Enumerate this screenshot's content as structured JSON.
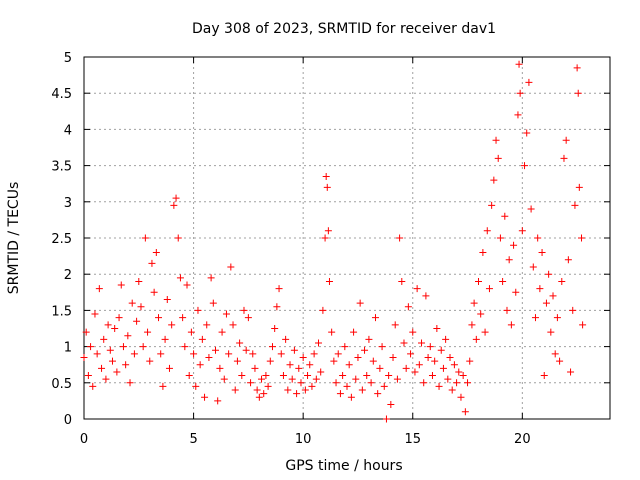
{
  "chart_data": {
    "type": "scatter",
    "title": "Day 308 of 2023, SRMTID for receiver dav1",
    "xlabel": "GPS time / hours",
    "ylabel": "SRMTID / TECUs",
    "xlim": [
      0,
      24
    ],
    "ylim": [
      0,
      5
    ],
    "x_ticks": [
      "0",
      "5",
      "10",
      "15",
      "20"
    ],
    "y_ticks": [
      "0",
      "0.5",
      "1",
      "1.5",
      "2",
      "2.5",
      "3",
      "3.5",
      "4",
      "4.5",
      "5"
    ],
    "grid": true,
    "marker": "+",
    "color": "#ff0000",
    "series": [
      {
        "name": "dav1",
        "points": [
          [
            0.0,
            0.85
          ],
          [
            0.1,
            1.2
          ],
          [
            0.2,
            0.6
          ],
          [
            0.3,
            1.0
          ],
          [
            0.4,
            0.45
          ],
          [
            0.5,
            1.45
          ],
          [
            0.6,
            0.9
          ],
          [
            0.7,
            1.8
          ],
          [
            0.8,
            0.7
          ],
          [
            0.9,
            1.1
          ],
          [
            1.0,
            0.55
          ],
          [
            1.1,
            1.3
          ],
          [
            1.2,
            0.95
          ],
          [
            1.3,
            0.8
          ],
          [
            1.4,
            1.25
          ],
          [
            1.5,
            0.65
          ],
          [
            1.6,
            1.4
          ],
          [
            1.7,
            1.85
          ],
          [
            1.8,
            1.0
          ],
          [
            1.9,
            0.75
          ],
          [
            2.0,
            1.15
          ],
          [
            2.1,
            0.5
          ],
          [
            2.2,
            1.6
          ],
          [
            2.3,
            0.9
          ],
          [
            2.4,
            1.35
          ],
          [
            2.5,
            1.9
          ],
          [
            2.6,
            1.55
          ],
          [
            2.7,
            1.0
          ],
          [
            2.8,
            2.5
          ],
          [
            2.9,
            1.2
          ],
          [
            3.0,
            0.8
          ],
          [
            3.1,
            2.15
          ],
          [
            3.2,
            1.75
          ],
          [
            3.3,
            2.3
          ],
          [
            3.4,
            1.4
          ],
          [
            3.5,
            0.9
          ],
          [
            3.6,
            0.45
          ],
          [
            3.7,
            1.1
          ],
          [
            3.8,
            1.65
          ],
          [
            3.9,
            0.7
          ],
          [
            4.0,
            1.3
          ],
          [
            4.1,
            2.95
          ],
          [
            4.2,
            3.05
          ],
          [
            4.3,
            2.5
          ],
          [
            4.4,
            1.95
          ],
          [
            4.5,
            1.4
          ],
          [
            4.6,
            1.0
          ],
          [
            4.7,
            1.85
          ],
          [
            4.8,
            0.6
          ],
          [
            4.9,
            1.2
          ],
          [
            5.0,
            0.9
          ],
          [
            5.1,
            0.45
          ],
          [
            5.2,
            1.5
          ],
          [
            5.3,
            0.75
          ],
          [
            5.4,
            1.1
          ],
          [
            5.5,
            0.3
          ],
          [
            5.6,
            1.3
          ],
          [
            5.7,
            0.85
          ],
          [
            5.8,
            1.95
          ],
          [
            5.9,
            1.6
          ],
          [
            6.0,
            0.95
          ],
          [
            6.1,
            0.25
          ],
          [
            6.2,
            0.7
          ],
          [
            6.3,
            1.2
          ],
          [
            6.4,
            0.55
          ],
          [
            6.5,
            1.45
          ],
          [
            6.6,
            0.9
          ],
          [
            6.7,
            2.1
          ],
          [
            6.8,
            1.3
          ],
          [
            6.9,
            0.4
          ],
          [
            7.0,
            0.8
          ],
          [
            7.1,
            1.05
          ],
          [
            7.2,
            0.6
          ],
          [
            7.3,
            1.5
          ],
          [
            7.4,
            0.95
          ],
          [
            7.5,
            1.4
          ],
          [
            7.6,
            0.5
          ],
          [
            7.7,
            0.9
          ],
          [
            7.8,
            0.7
          ],
          [
            7.9,
            0.4
          ],
          [
            8.0,
            0.3
          ],
          [
            8.1,
            0.55
          ],
          [
            8.2,
            0.35
          ],
          [
            8.3,
            0.6
          ],
          [
            8.4,
            0.45
          ],
          [
            8.5,
            0.8
          ],
          [
            8.6,
            1.0
          ],
          [
            8.7,
            1.25
          ],
          [
            8.8,
            1.55
          ],
          [
            8.9,
            1.8
          ],
          [
            9.0,
            0.9
          ],
          [
            9.1,
            0.6
          ],
          [
            9.2,
            1.1
          ],
          [
            9.3,
            0.4
          ],
          [
            9.4,
            0.75
          ],
          [
            9.5,
            0.55
          ],
          [
            9.6,
            0.95
          ],
          [
            9.7,
            0.35
          ],
          [
            9.8,
            0.7
          ],
          [
            9.9,
            0.5
          ],
          [
            10.0,
            0.85
          ],
          [
            10.1,
            0.4
          ],
          [
            10.2,
            0.6
          ],
          [
            10.3,
            0.75
          ],
          [
            10.4,
            0.45
          ],
          [
            10.5,
            0.9
          ],
          [
            10.6,
            0.55
          ],
          [
            10.7,
            1.05
          ],
          [
            10.8,
            0.65
          ],
          [
            10.9,
            1.5
          ],
          [
            11.0,
            2.5
          ],
          [
            11.05,
            3.35
          ],
          [
            11.1,
            3.2
          ],
          [
            11.15,
            2.6
          ],
          [
            11.2,
            1.9
          ],
          [
            11.3,
            1.2
          ],
          [
            11.4,
            0.8
          ],
          [
            11.5,
            0.5
          ],
          [
            11.6,
            0.9
          ],
          [
            11.7,
            0.35
          ],
          [
            11.8,
            0.6
          ],
          [
            11.9,
            1.0
          ],
          [
            12.0,
            0.45
          ],
          [
            12.1,
            0.75
          ],
          [
            12.2,
            0.3
          ],
          [
            12.3,
            1.2
          ],
          [
            12.4,
            0.55
          ],
          [
            12.5,
            0.85
          ],
          [
            12.6,
            1.6
          ],
          [
            12.7,
            0.4
          ],
          [
            12.8,
            0.95
          ],
          [
            12.9,
            0.6
          ],
          [
            13.0,
            1.1
          ],
          [
            13.1,
            0.5
          ],
          [
            13.2,
            0.8
          ],
          [
            13.3,
            1.4
          ],
          [
            13.4,
            0.35
          ],
          [
            13.5,
            0.7
          ],
          [
            13.6,
            1.0
          ],
          [
            13.7,
            0.45
          ],
          [
            13.8,
            0.0
          ],
          [
            13.9,
            0.6
          ],
          [
            14.0,
            0.2
          ],
          [
            14.1,
            0.85
          ],
          [
            14.2,
            1.3
          ],
          [
            14.3,
            0.55
          ],
          [
            14.4,
            2.5
          ],
          [
            14.5,
            1.9
          ],
          [
            14.6,
            1.05
          ],
          [
            14.7,
            0.7
          ],
          [
            14.8,
            1.55
          ],
          [
            14.9,
            0.9
          ],
          [
            15.0,
            1.2
          ],
          [
            15.1,
            0.65
          ],
          [
            15.2,
            1.8
          ],
          [
            15.3,
            0.75
          ],
          [
            15.4,
            1.05
          ],
          [
            15.5,
            0.5
          ],
          [
            15.6,
            1.7
          ],
          [
            15.7,
            0.85
          ],
          [
            15.8,
            1.0
          ],
          [
            15.9,
            0.6
          ],
          [
            16.0,
            0.8
          ],
          [
            16.1,
            1.25
          ],
          [
            16.2,
            0.45
          ],
          [
            16.3,
            0.95
          ],
          [
            16.4,
            0.7
          ],
          [
            16.5,
            1.1
          ],
          [
            16.6,
            0.55
          ],
          [
            16.7,
            0.85
          ],
          [
            16.8,
            0.4
          ],
          [
            16.9,
            0.75
          ],
          [
            17.0,
            0.5
          ],
          [
            17.1,
            0.65
          ],
          [
            17.2,
            0.3
          ],
          [
            17.3,
            0.6
          ],
          [
            17.4,
            0.1
          ],
          [
            17.5,
            0.5
          ],
          [
            17.6,
            0.8
          ],
          [
            17.7,
            1.3
          ],
          [
            17.8,
            1.6
          ],
          [
            17.9,
            1.1
          ],
          [
            18.0,
            1.9
          ],
          [
            18.1,
            1.45
          ],
          [
            18.2,
            2.3
          ],
          [
            18.3,
            1.2
          ],
          [
            18.4,
            2.6
          ],
          [
            18.5,
            1.8
          ],
          [
            18.6,
            2.95
          ],
          [
            18.7,
            3.3
          ],
          [
            18.8,
            3.85
          ],
          [
            18.9,
            3.6
          ],
          [
            19.0,
            2.5
          ],
          [
            19.1,
            1.9
          ],
          [
            19.2,
            2.8
          ],
          [
            19.3,
            1.5
          ],
          [
            19.4,
            2.2
          ],
          [
            19.5,
            1.3
          ],
          [
            19.6,
            2.4
          ],
          [
            19.7,
            1.75
          ],
          [
            19.8,
            4.2
          ],
          [
            19.85,
            4.9
          ],
          [
            19.9,
            4.5
          ],
          [
            20.0,
            2.6
          ],
          [
            20.1,
            3.5
          ],
          [
            20.2,
            3.95
          ],
          [
            20.3,
            4.65
          ],
          [
            20.4,
            2.9
          ],
          [
            20.5,
            2.1
          ],
          [
            20.6,
            1.4
          ],
          [
            20.7,
            2.5
          ],
          [
            20.8,
            1.8
          ],
          [
            20.9,
            2.3
          ],
          [
            21.0,
            0.6
          ],
          [
            21.1,
            1.6
          ],
          [
            21.2,
            2.0
          ],
          [
            21.3,
            1.2
          ],
          [
            21.4,
            1.7
          ],
          [
            21.5,
            0.9
          ],
          [
            21.6,
            1.4
          ],
          [
            21.7,
            0.8
          ],
          [
            21.8,
            1.9
          ],
          [
            21.9,
            3.6
          ],
          [
            22.0,
            3.85
          ],
          [
            22.1,
            2.2
          ],
          [
            22.2,
            0.65
          ],
          [
            22.3,
            1.5
          ],
          [
            22.4,
            2.95
          ],
          [
            22.5,
            4.85
          ],
          [
            22.55,
            4.5
          ],
          [
            22.6,
            3.2
          ],
          [
            22.7,
            2.5
          ],
          [
            22.75,
            1.3
          ]
        ]
      }
    ]
  }
}
